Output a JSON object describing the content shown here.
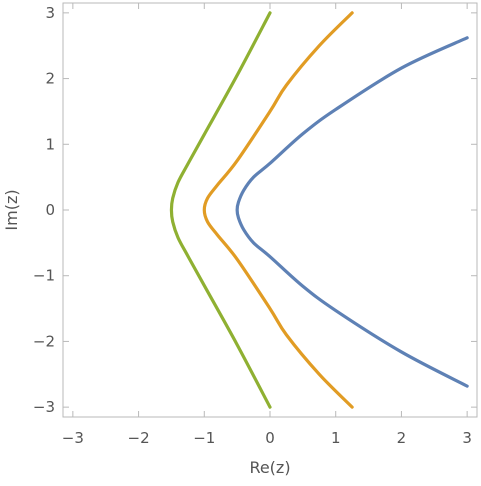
{
  "chart_data": {
    "type": "line",
    "title": "",
    "xlabel": "Re(z)",
    "ylabel": "Im(z)",
    "xlim": [
      -3.15,
      3.15
    ],
    "ylim": [
      -3.15,
      3.15
    ],
    "xticks": [
      -3,
      -2,
      -1,
      0,
      1,
      2,
      3
    ],
    "yticks": [
      -3,
      -2,
      -1,
      0,
      1,
      2,
      3
    ],
    "xtick_labels": [
      "−3",
      "−2",
      "−1",
      "0",
      "1",
      "2",
      "3"
    ],
    "ytick_labels": [
      "−3",
      "−2",
      "−1",
      "0",
      "1",
      "2",
      "3"
    ],
    "grid": false,
    "legend": "none",
    "series": [
      {
        "color": "#5e81b5",
        "points": [
          [
            3.0,
            -2.68
          ],
          [
            2.0,
            -2.16
          ],
          [
            1.0,
            -1.53
          ],
          [
            0.5,
            -1.16
          ],
          [
            0.0,
            -0.71
          ],
          [
            -0.25,
            -0.5
          ],
          [
            -0.4,
            -0.3
          ],
          [
            -0.48,
            -0.12
          ],
          [
            -0.5,
            0.0
          ],
          [
            -0.48,
            0.12
          ],
          [
            -0.4,
            0.3
          ],
          [
            -0.25,
            0.5
          ],
          [
            0.0,
            0.71
          ],
          [
            0.5,
            1.16
          ],
          [
            1.0,
            1.53
          ],
          [
            2.0,
            2.16
          ],
          [
            3.0,
            2.62
          ]
        ]
      },
      {
        "color": "#e19c24",
        "points": [
          [
            1.25,
            -3.0
          ],
          [
            0.75,
            -2.5
          ],
          [
            0.25,
            -1.9
          ],
          [
            0.0,
            -1.5
          ],
          [
            -0.5,
            -0.75
          ],
          [
            -0.8,
            -0.38
          ],
          [
            -0.95,
            -0.18
          ],
          [
            -1.0,
            0.0
          ],
          [
            -0.95,
            0.18
          ],
          [
            -0.8,
            0.38
          ],
          [
            -0.5,
            0.75
          ],
          [
            0.0,
            1.5
          ],
          [
            0.25,
            1.9
          ],
          [
            0.75,
            2.5
          ],
          [
            1.25,
            3.0
          ]
        ]
      },
      {
        "color": "#8fb032",
        "points": [
          [
            0.0,
            -3.0
          ],
          [
            -0.5,
            -2.05
          ],
          [
            -1.0,
            -1.15
          ],
          [
            -1.25,
            -0.7
          ],
          [
            -1.4,
            -0.42
          ],
          [
            -1.48,
            -0.18
          ],
          [
            -1.5,
            0.0
          ],
          [
            -1.48,
            0.18
          ],
          [
            -1.4,
            0.42
          ],
          [
            -1.25,
            0.7
          ],
          [
            -1.0,
            1.15
          ],
          [
            -0.5,
            2.05
          ],
          [
            0.0,
            3.0
          ]
        ]
      }
    ]
  }
}
